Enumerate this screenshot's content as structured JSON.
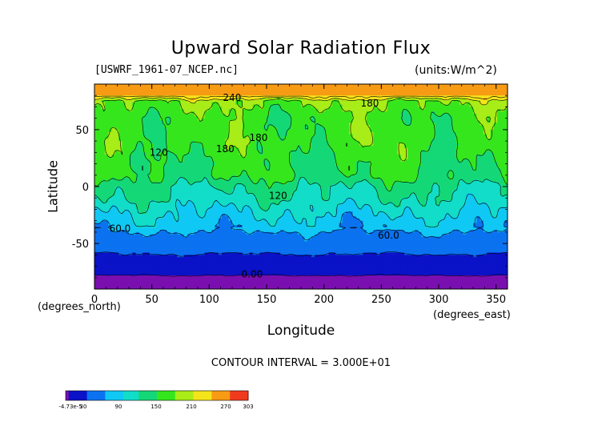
{
  "chart_data": {
    "type": "heatmap",
    "title": "Upward Solar Radiation Flux",
    "file_label": "[USWRF_1961-07_NCEP.nc]",
    "units_label": "(units:W/m^2)",
    "xlabel": "Longitude",
    "ylabel": "Latitude",
    "x_unit_label": "(degrees_east)",
    "y_unit_label": "(degrees_north)",
    "xlim": [
      0,
      360
    ],
    "ylim": [
      -90,
      90
    ],
    "x_ticks": [
      0,
      50,
      100,
      150,
      200,
      250,
      300,
      350
    ],
    "y_ticks": [
      -50,
      0,
      50
    ],
    "contour_interval_text": "CONTOUR INTERVAL = 3.000E+01",
    "contour_labels": [
      {
        "text": "240",
        "lon": 112,
        "lat": 78
      },
      {
        "text": "180",
        "lon": 232,
        "lat": 73
      },
      {
        "text": "180",
        "lon": 135,
        "lat": 43
      },
      {
        "text": "180",
        "lon": 106,
        "lat": 33
      },
      {
        "text": "120",
        "lon": 48,
        "lat": 30
      },
      {
        "text": "120",
        "lon": 152,
        "lat": -8
      },
      {
        "text": "60.0",
        "lon": 13,
        "lat": -37
      },
      {
        "text": "60.0",
        "lon": 247,
        "lat": -43
      },
      {
        "text": "0.00",
        "lon": 128,
        "lat": -77
      }
    ],
    "color_levels": [
      0,
      30,
      60,
      90,
      120,
      150,
      180,
      210,
      240,
      270,
      300
    ],
    "colorbar_ticks": [
      "-4.73e-5",
      "30",
      "90",
      "150",
      "210",
      "270",
      "303"
    ],
    "colors": {
      "below_-60": "#7a0fb0",
      "band_0_30": "#0b12c8",
      "band_30_60": "#0b72f0",
      "band_60_90": "#10c8f4",
      "band_90_120": "#12ddc8",
      "band_120_150": "#14d877",
      "band_150_180": "#36e61d",
      "band_180_210": "#a8ec18",
      "band_210_240": "#f4e41a",
      "band_240_270": "#f79b14",
      "band_270_300": "#f03a1e"
    },
    "latitude_profile": [
      {
        "lat": 90,
        "value": 250
      },
      {
        "lat": 80,
        "value": 250
      },
      {
        "lat": 75,
        "value": 185
      },
      {
        "lat": 60,
        "value": 160
      },
      {
        "lat": 40,
        "value": 165
      },
      {
        "lat": 20,
        "value": 150
      },
      {
        "lat": 10,
        "value": 150
      },
      {
        "lat": 0,
        "value": 125
      },
      {
        "lat": -10,
        "value": 115
      },
      {
        "lat": -20,
        "value": 95
      },
      {
        "lat": -35,
        "value": 70
      },
      {
        "lat": -42,
        "value": 55
      },
      {
        "lat": -55,
        "value": 35
      },
      {
        "lat": -72,
        "value": 15
      },
      {
        "lat": -80,
        "value": -5
      },
      {
        "lat": -90,
        "value": -5
      }
    ]
  }
}
